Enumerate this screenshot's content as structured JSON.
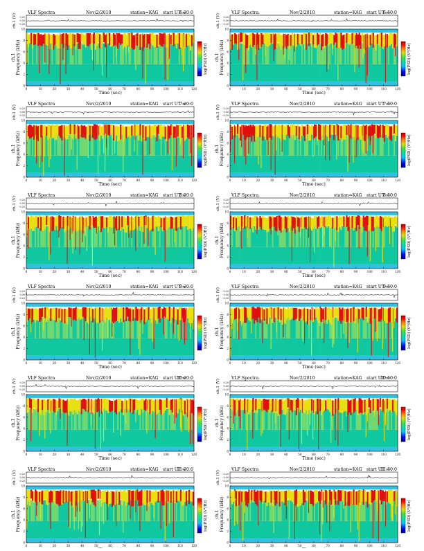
{
  "header": {
    "title": "VLF Spectra",
    "date": "Nov/2/2010",
    "station": "station=KAG",
    "start_prefix": "start  UT ="
  },
  "axes": {
    "ch_label": "ch.1 (V)",
    "freq_label": "ch.1",
    "freq_label2": "Frequency  (kHz)",
    "time_label": "Time  (sec)",
    "colorbar_label": "log(PSD) (V²/Hz)",
    "ch_ticks": [
      "0.20",
      "0.00",
      "-0.20"
    ],
    "freq_ticks": [
      "0",
      "2",
      "4",
      "6",
      "8",
      "10"
    ],
    "time_ticks": [
      "0",
      "10",
      "20",
      "30",
      "40",
      "50",
      "60",
      "70",
      "80",
      "90",
      "100",
      "110",
      "120"
    ]
  },
  "colors": {
    "background_band": "#30c0e0",
    "low": "#10c8a0",
    "mid": "#e8e010",
    "high": "#e01010",
    "colorbar": [
      "#000080",
      "#0000ff",
      "#00c0ff",
      "#00e0a0",
      "#40e040",
      "#e0e000",
      "#ff8000",
      "#ff0000",
      "#c00000"
    ]
  },
  "chart_data": [
    {
      "type": "heatmap",
      "start_ut": "6:20:0",
      "xlim": [
        0,
        120
      ],
      "ylim": [
        0,
        10
      ],
      "xlabel": "Time  (sec)",
      "ylabel": "Frequency  (kHz)"
    },
    {
      "type": "heatmap",
      "start_ut": "6:50:0",
      "xlim": [
        0,
        120
      ],
      "ylim": [
        0,
        10
      ],
      "xlabel": "Time  (sec)",
      "ylabel": "Frequency  (kHz)"
    },
    {
      "type": "heatmap",
      "start_ut": "7:20:0",
      "xlim": [
        0,
        120
      ],
      "ylim": [
        0,
        10
      ],
      "xlabel": "Time  (sec)",
      "ylabel": "Frequency  (kHz)"
    },
    {
      "type": "heatmap",
      "start_ut": "7:50:0",
      "xlim": [
        0,
        120
      ],
      "ylim": [
        0,
        10
      ],
      "xlabel": "Time  (sec)",
      "ylabel": "Frequency  (kHz)"
    },
    {
      "type": "heatmap",
      "start_ut": "8:20:0",
      "xlim": [
        0,
        120
      ],
      "ylim": [
        0,
        10
      ],
      "xlabel": "Time  (sec)",
      "ylabel": "Frequency  (kHz)"
    },
    {
      "type": "heatmap",
      "start_ut": "8:50:0",
      "xlim": [
        0,
        120
      ],
      "ylim": [
        0,
        10
      ],
      "xlabel": "Time  (sec)",
      "ylabel": "Frequency  (kHz)"
    },
    {
      "type": "heatmap",
      "start_ut": "9:20:0",
      "xlim": [
        0,
        120
      ],
      "ylim": [
        0,
        10
      ],
      "xlabel": "Time  (sec)",
      "ylabel": "Frequency  (kHz)"
    },
    {
      "type": "heatmap",
      "start_ut": "9:50:0",
      "xlim": [
        0,
        120
      ],
      "ylim": [
        0,
        10
      ],
      "xlabel": "Time  (sec)",
      "ylabel": "Frequency  (kHz)"
    },
    {
      "type": "heatmap",
      "start_ut": "10:20:0",
      "xlim": [
        0,
        120
      ],
      "ylim": [
        0,
        10
      ],
      "xlabel": "Time  (sec)",
      "ylabel": "Frequency  (kHz)"
    },
    {
      "type": "heatmap",
      "start_ut": "10:50:0",
      "xlim": [
        0,
        120
      ],
      "ylim": [
        0,
        10
      ],
      "xlabel": "Time  (sec)",
      "ylabel": "Frequency  (kHz)"
    },
    {
      "type": "heatmap",
      "start_ut": "11:20:0",
      "xlim": [
        0,
        120
      ],
      "ylim": [
        0,
        10
      ],
      "xlabel": "Time  (sec)",
      "ylabel": "Frequency  (kHz)"
    },
    {
      "type": "heatmap",
      "start_ut": "11:50:0",
      "xlim": [
        0,
        120
      ],
      "ylim": [
        0,
        10
      ],
      "xlabel": "Time  (sec)",
      "ylabel": "Frequency  (kHz)"
    }
  ]
}
